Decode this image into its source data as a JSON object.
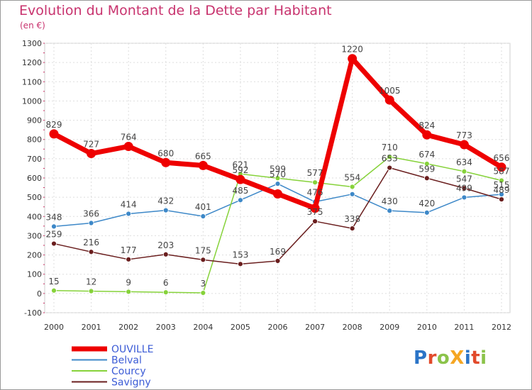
{
  "title": "Evolution du Montant de la Dette par Habitant",
  "unit": "(en €)",
  "logo": {
    "text": "ProXiti",
    "colors": [
      "#2b74c7",
      "#e24a2b",
      "#8bc34a",
      "#f5a623",
      "#2b74c7",
      "#e24a2b",
      "#8bc34a"
    ]
  },
  "chart_data": {
    "type": "line",
    "title": "Evolution du Montant de la Dette par Habitant",
    "ylabel": "(en €)",
    "xlabel": "",
    "x": [
      "2000",
      "2001",
      "2002",
      "2003",
      "2004",
      "2005",
      "2006",
      "2007",
      "2008",
      "2009",
      "2010",
      "2011",
      "2012"
    ],
    "ylim": [
      -100,
      1300
    ],
    "yticks": [
      "-100",
      "0",
      "100",
      "200",
      "300",
      "400",
      "500",
      "600",
      "700",
      "800",
      "900",
      "1000",
      "1100",
      "1200",
      "1300"
    ],
    "grid": true,
    "legend_position": "bottom-left",
    "series": [
      {
        "name": "OUVILLE",
        "color": "#ee0000",
        "values": [
          829,
          727,
          764,
          680,
          665,
          592,
          517,
          443,
          1220,
          1005,
          824,
          773,
          656
        ],
        "labels": [
          "829",
          "727",
          "764",
          "680",
          "665",
          "592",
          "",
          "",
          "1220",
          "1005",
          "824",
          "773",
          "656"
        ]
      },
      {
        "name": "Belval",
        "color": "#3d88c8",
        "values": [
          348,
          366,
          414,
          432,
          401,
          485,
          570,
          476,
          516,
          430,
          420,
          499,
          515
        ],
        "labels": [
          "348",
          "366",
          "414",
          "432",
          "401",
          "485",
          "570",
          "476",
          "",
          "430",
          "420",
          "499",
          "515"
        ]
      },
      {
        "name": "Courcy",
        "color": "#86d23a",
        "values": [
          15,
          12,
          9,
          6,
          3,
          621,
          599,
          577,
          554,
          710,
          674,
          634,
          587
        ],
        "labels": [
          "15",
          "12",
          "9",
          "6",
          "3",
          "621",
          "599",
          "577",
          "554",
          "710",
          "674",
          "634",
          "587"
        ]
      },
      {
        "name": "Savigny",
        "color": "#6a1e1e",
        "values": [
          259,
          216,
          177,
          203,
          175,
          153,
          169,
          375,
          338,
          653,
          599,
          547,
          489
        ],
        "labels": [
          "259",
          "216",
          "177",
          "203",
          "175",
          "153",
          "169",
          "375",
          "338",
          "653",
          "599",
          "547",
          "489"
        ]
      }
    ]
  }
}
